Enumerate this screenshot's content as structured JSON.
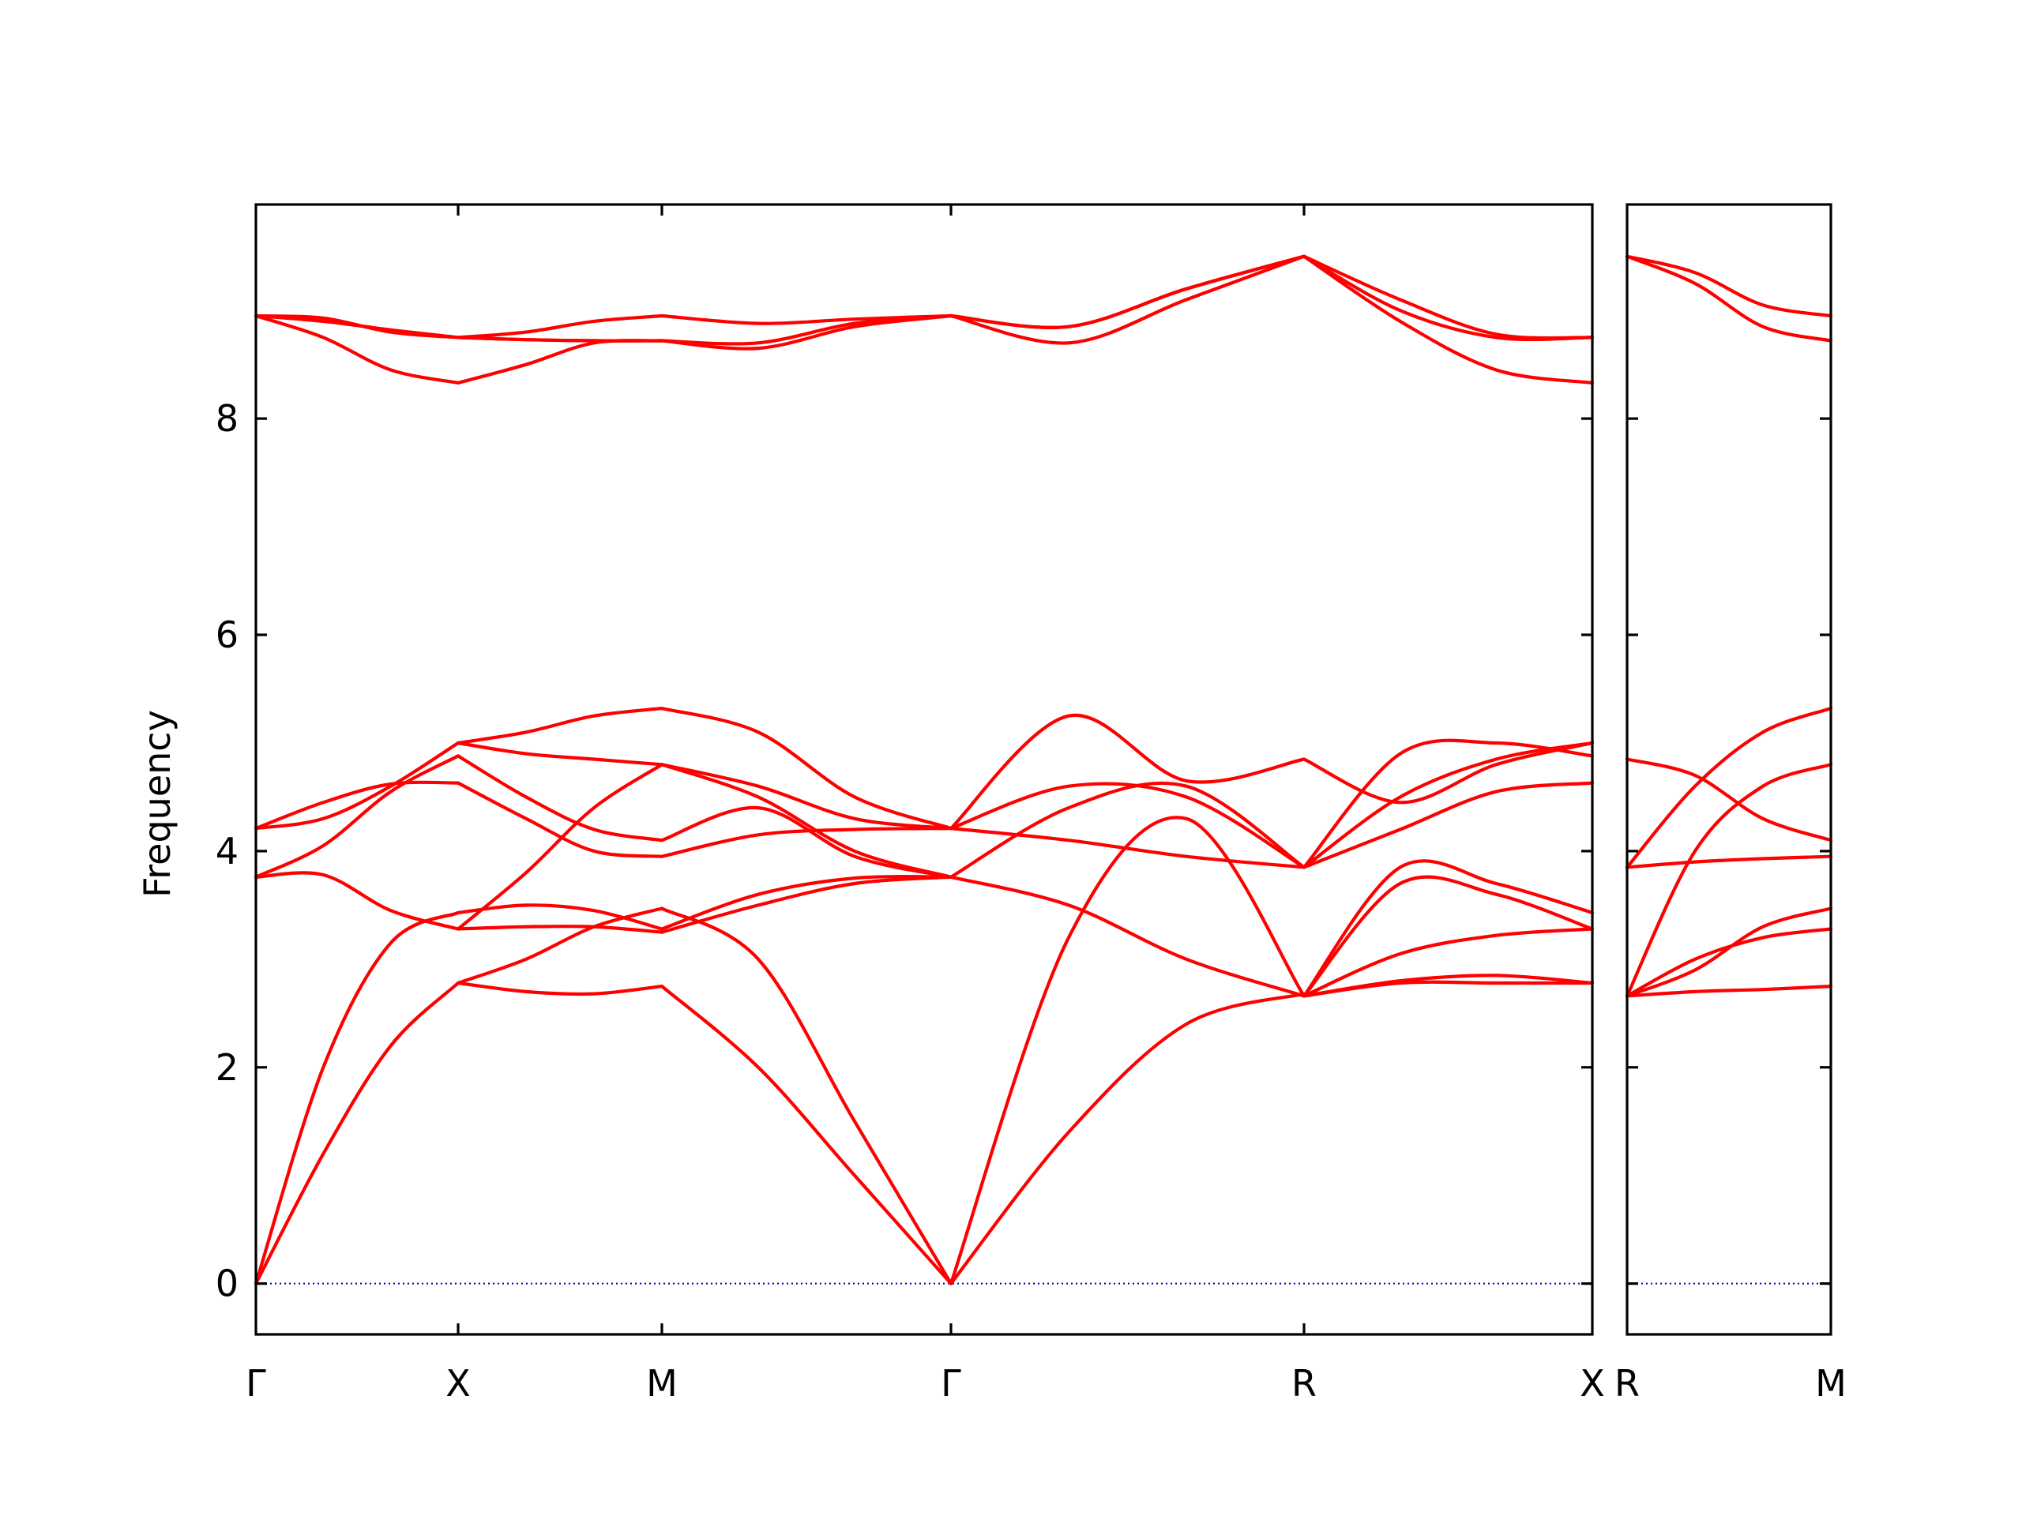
{
  "chart_data": {
    "type": "line",
    "ylabel": "Frequency",
    "ylim": [
      -0.47,
      9.98
    ],
    "y_ticks": [
      "0",
      "2",
      "4",
      "6",
      "8"
    ],
    "y_tick_values": [
      0,
      2,
      4,
      6,
      8
    ],
    "line_color": "#ff0000",
    "zero_line_color": "#0000aa",
    "grid": false,
    "legend": "none",
    "panels": [
      {
        "path_labels": [
          "Γ",
          "X",
          "M",
          "Γ",
          "R",
          "X"
        ],
        "segments": [
          {
            "from": "Γ",
            "to": "X",
            "branches": [
              [
                0,
                1.2,
                2.2,
                2.78
              ],
              [
                0,
                2.0,
                3.15,
                3.43
              ],
              [
                3.76,
                3.78,
                3.45,
                3.28
              ],
              [
                3.76,
                4.05,
                4.55,
                4.88
              ],
              [
                4.21,
                4.3,
                4.6,
                5.0
              ],
              [
                4.21,
                4.45,
                4.62,
                4.63
              ],
              [
                8.95,
                8.93,
                8.8,
                8.75
              ],
              [
                8.95,
                8.9,
                8.82,
                8.75
              ],
              [
                8.95,
                8.75,
                8.45,
                8.33
              ]
            ]
          },
          {
            "from": "X",
            "to": "M",
            "branches": [
              [
                2.78,
                2.7,
                2.68,
                2.75
              ],
              [
                3.28,
                3.3,
                3.3,
                3.25
              ],
              [
                3.43,
                3.5,
                3.45,
                3.28
              ],
              [
                2.78,
                3.0,
                3.3,
                3.47
              ],
              [
                3.28,
                3.8,
                4.4,
                4.8
              ],
              [
                4.63,
                4.3,
                4.0,
                3.95
              ],
              [
                4.88,
                4.5,
                4.2,
                4.1
              ],
              [
                5.0,
                4.9,
                4.85,
                4.8
              ],
              [
                5.0,
                5.1,
                5.25,
                5.32
              ],
              [
                8.75,
                8.73,
                8.72,
                8.72
              ],
              [
                8.75,
                8.73,
                8.72,
                8.72
              ],
              [
                8.33,
                8.5,
                8.7,
                8.72
              ],
              [
                8.75,
                8.8,
                8.9,
                8.95
              ]
            ]
          },
          {
            "from": "M",
            "to": "Γ",
            "branches": [
              [
                2.75,
                2.0,
                1.0,
                0
              ],
              [
                3.47,
                3.0,
                1.5,
                0
              ],
              [
                3.25,
                3.5,
                3.7,
                3.76
              ],
              [
                3.28,
                3.6,
                3.75,
                3.76
              ],
              [
                4.8,
                4.5,
                4.0,
                3.76
              ],
              [
                3.95,
                4.15,
                4.2,
                4.21
              ],
              [
                4.1,
                4.4,
                3.95,
                3.76
              ],
              [
                4.8,
                4.6,
                4.3,
                4.21
              ],
              [
                5.32,
                5.1,
                4.5,
                4.21
              ],
              [
                8.72,
                8.65,
                8.85,
                8.95
              ],
              [
                8.72,
                8.7,
                8.88,
                8.95
              ],
              [
                8.95,
                8.88,
                8.92,
                8.95
              ]
            ]
          },
          {
            "from": "Γ",
            "to": "R",
            "branches": [
              [
                0,
                1.4,
                2.4,
                2.68
              ],
              [
                0,
                3.2,
                4.3,
                2.66
              ],
              [
                3.76,
                3.5,
                3.0,
                2.66
              ],
              [
                3.76,
                4.4,
                4.6,
                3.85
              ],
              [
                4.21,
                4.6,
                4.5,
                3.85
              ],
              [
                4.21,
                4.1,
                3.95,
                3.85
              ],
              [
                4.21,
                5.25,
                4.65,
                4.85
              ],
              [
                8.95,
                8.7,
                9.1,
                9.5
              ],
              [
                8.95,
                8.85,
                9.2,
                9.5
              ],
              [
                8.95,
                8.85,
                9.2,
                9.5
              ]
            ]
          },
          {
            "from": "R",
            "to": "X",
            "branches": [
              [
                2.66,
                2.8,
                2.85,
                2.78
              ],
              [
                2.66,
                2.78,
                2.78,
                2.78
              ],
              [
                2.66,
                3.05,
                3.22,
                3.28
              ],
              [
                2.66,
                3.7,
                3.6,
                3.28
              ],
              [
                2.66,
                3.85,
                3.7,
                3.43
              ],
              [
                3.85,
                4.2,
                4.55,
                4.63
              ],
              [
                3.85,
                4.5,
                4.85,
                5.0
              ],
              [
                3.85,
                4.9,
                5.0,
                4.88
              ],
              [
                4.85,
                4.45,
                4.8,
                5.0
              ],
              [
                9.5,
                9.1,
                8.78,
                8.75
              ],
              [
                9.5,
                9.0,
                8.75,
                8.75
              ],
              [
                9.5,
                8.9,
                8.45,
                8.33
              ]
            ]
          }
        ]
      },
      {
        "path_labels": [
          "R",
          "M"
        ],
        "segments": [
          {
            "from": "R",
            "to": "M",
            "branches": [
              [
                2.66,
                2.7,
                2.72,
                2.75
              ],
              [
                2.66,
                3.0,
                3.2,
                3.28
              ],
              [
                2.66,
                2.9,
                3.3,
                3.47
              ],
              [
                3.85,
                3.9,
                3.93,
                3.95
              ],
              [
                2.66,
                4.0,
                4.6,
                4.8
              ],
              [
                3.85,
                4.6,
                5.1,
                5.32
              ],
              [
                4.85,
                4.7,
                4.3,
                4.1
              ],
              [
                9.5,
                9.35,
                9.05,
                8.95
              ],
              [
                9.5,
                9.25,
                8.85,
                8.72
              ]
            ]
          }
        ]
      }
    ]
  }
}
